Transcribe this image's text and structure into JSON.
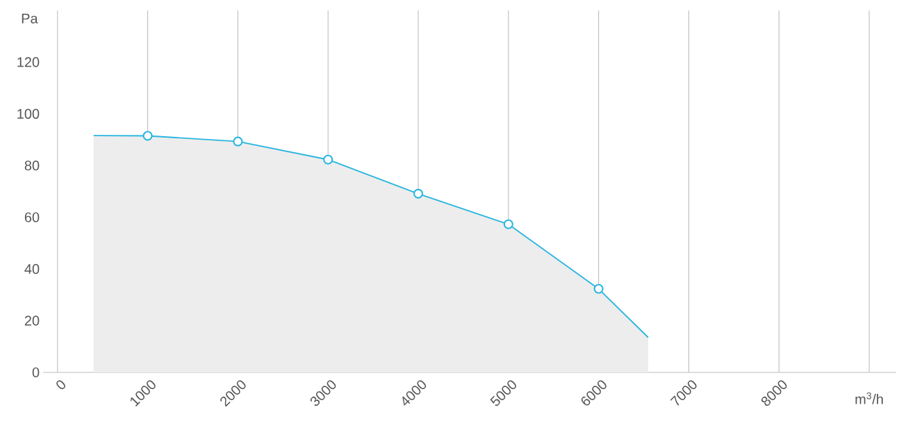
{
  "chart_data": {
    "type": "area",
    "xlabel": "m$^{3}$/h",
    "ylabel": "Pa",
    "xlim": [
      -160,
      9300
    ],
    "ylim": [
      0,
      140
    ],
    "xticks": [
      0,
      1000,
      2000,
      3000,
      4000,
      5000,
      6000,
      7000,
      8000,
      {
        "value": 9000,
        "label": null
      }
    ],
    "yticks": [
      0,
      20,
      40,
      60,
      80,
      100,
      120
    ],
    "grid": "x",
    "series": [
      {
        "color": "#29b6e0",
        "marker": "none",
        "x": [
          400,
          1000,
          2000,
          3000,
          4000,
          5000,
          6000,
          6550
        ],
        "values": [
          91.6,
          91.5,
          89.3,
          82.3,
          69.1,
          57.3,
          32.3,
          13.5
        ]
      },
      {
        "type": "scatter",
        "color": "#29b6e0",
        "marker": "circle",
        "x": [
          1000,
          2000,
          3000,
          4000,
          5000,
          6000
        ],
        "values": [
          91.5,
          89.3,
          82.3,
          69.1,
          57.3,
          32.3
        ]
      }
    ]
  }
}
